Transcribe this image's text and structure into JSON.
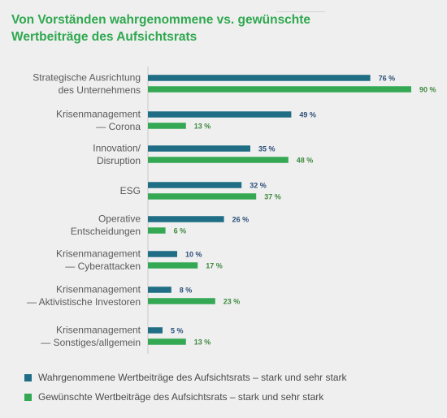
{
  "title_lines": [
    "Von Vorständen wahrgenommene vs. gewünschte",
    "Wertbeiträge des Aufsichtsrats"
  ],
  "colors": {
    "perceived": "#1f6e86",
    "desired": "#34a853",
    "title": "#2fa84f",
    "text": "#555555"
  },
  "chart_data": {
    "type": "bar",
    "orientation": "horizontal",
    "title": "Von Vorständen wahrgenommene vs. gewünschte Wertbeiträge des Aufsichtsrats",
    "value_suffix": " %",
    "xlim": [
      0,
      100
    ],
    "grid": false,
    "legend_position": "bottom",
    "categories": [
      [
        "Strategische Ausrichtung",
        "des Unternehmens"
      ],
      [
        "Krisenmanagement",
        "— Corona"
      ],
      [
        "Innovation/",
        "Disruption"
      ],
      [
        "ESG"
      ],
      [
        "Operative",
        "Entscheidungen"
      ],
      [
        "Krisenmanagement",
        "— Cyberattacken"
      ],
      [
        "Krisenmanagement",
        "— Aktivistische Investoren"
      ],
      [
        "Krisenmanagement",
        "— Sonstiges/allgemein"
      ]
    ],
    "series": [
      {
        "name": "Wahrgenommene Wertbeiträge des Aufsichtsrats – stark und sehr stark",
        "values": [
          76,
          49,
          35,
          32,
          26,
          10,
          8,
          5
        ]
      },
      {
        "name": "Gewünschte Wertbeiträge des Aufsichtsrats – stark und sehr stark",
        "values": [
          90,
          13,
          48,
          37,
          6,
          17,
          23,
          13
        ]
      }
    ]
  }
}
